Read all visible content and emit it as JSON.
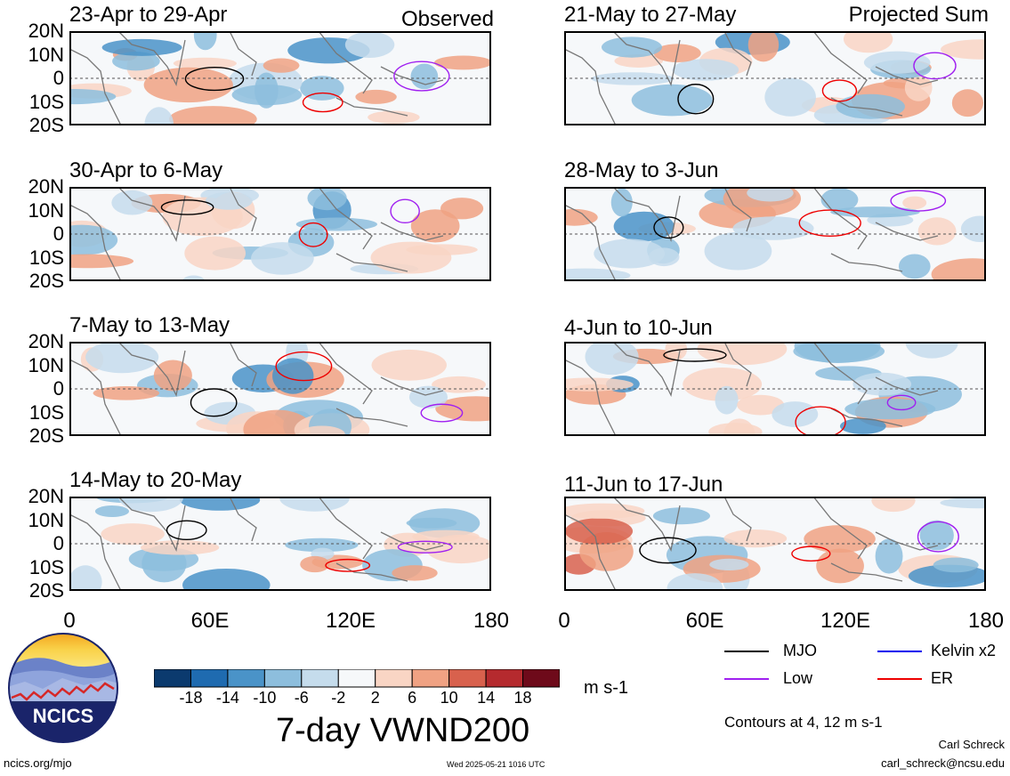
{
  "headers": {
    "left": "Observed",
    "right": "Projected Sum"
  },
  "panels": [
    {
      "title": "23-Apr to 29-Apr",
      "seed": 1
    },
    {
      "title": "21-May to 27-May",
      "seed": 2
    },
    {
      "title": "30-Apr to 6-May",
      "seed": 3
    },
    {
      "title": "28-May to 3-Jun",
      "seed": 4
    },
    {
      "title": "7-May to 13-May",
      "seed": 5
    },
    {
      "title": "4-Jun to 10-Jun",
      "seed": 6
    },
    {
      "title": "14-May to 20-May",
      "seed": 7
    },
    {
      "title": "11-Jun to 17-Jun",
      "seed": 8
    }
  ],
  "lat_labels": [
    "20N",
    "10N",
    "0",
    "10S",
    "20S"
  ],
  "lon_labels": [
    "0",
    "60E",
    "120E",
    "180"
  ],
  "colorbar": {
    "unit": "m s-1",
    "labels": [
      "-18",
      "-14",
      "-10",
      "-6",
      "-2",
      "2",
      "6",
      "10",
      "14",
      "18"
    ],
    "colors": [
      "#0b3a6e",
      "#1f6bb0",
      "#4a93c8",
      "#8dbedd",
      "#c5dcec",
      "#f6f8fa",
      "#f9d5c4",
      "#f0a283",
      "#d8614d",
      "#b52a2e",
      "#6e0a1a"
    ]
  },
  "legend": {
    "items": [
      {
        "label": "MJO",
        "color": "#000000"
      },
      {
        "label": "Kelvin x2",
        "color": "#0000ee"
      },
      {
        "label": "Low",
        "color": "#a020f0"
      },
      {
        "label": "ER",
        "color": "#ee0000"
      }
    ],
    "contours_note": "Contours at 4, 12 m s-1"
  },
  "logo_text": "NCICS",
  "main_title": "7-day VWND200",
  "footer": {
    "url": "ncics.org/mjo",
    "timestamp": "Wed 2025-05-21 1016 UTC",
    "author": "Carl Schreck",
    "email": "carl_schreck@ncsu.edu"
  }
}
